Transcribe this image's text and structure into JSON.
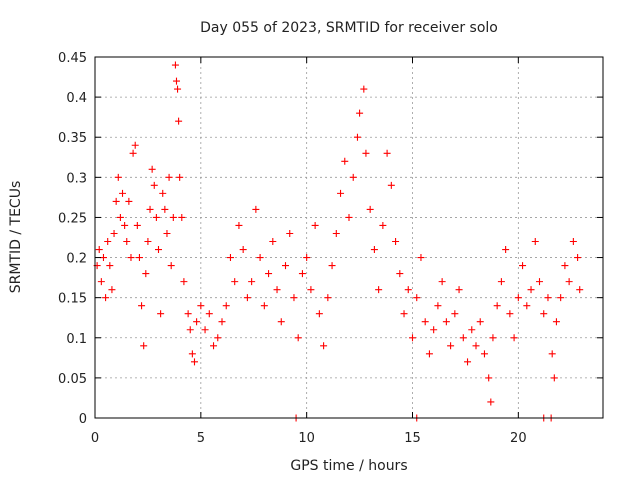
{
  "chart_data": {
    "type": "scatter",
    "title": "Day 055 of 2023, SRMTID for receiver solo",
    "xlabel": "GPS time / hours",
    "ylabel": "SRMTID / TECUs",
    "xlim": [
      0,
      24
    ],
    "ylim": [
      0,
      0.45
    ],
    "xticks": [
      0,
      5,
      10,
      15,
      20
    ],
    "xtick_labels": [
      "0",
      "5",
      "10",
      "15",
      "20"
    ],
    "yticks": [
      0,
      0.05,
      0.1,
      0.15,
      0.2,
      0.25,
      0.3,
      0.35,
      0.4,
      0.45
    ],
    "ytick_labels": [
      "0",
      "0.05",
      "0.1",
      "0.15",
      "0.2",
      "0.25",
      "0.3",
      "0.35",
      "0.4",
      "0.45"
    ],
    "grid": true,
    "marker": "+",
    "color": "#ff0000",
    "series": [
      {
        "name": "SRMTID",
        "points": [
          [
            0.1,
            0.19
          ],
          [
            0.2,
            0.21
          ],
          [
            0.3,
            0.17
          ],
          [
            0.4,
            0.2
          ],
          [
            0.5,
            0.15
          ],
          [
            0.6,
            0.22
          ],
          [
            0.7,
            0.19
          ],
          [
            0.8,
            0.16
          ],
          [
            0.9,
            0.23
          ],
          [
            1.0,
            0.27
          ],
          [
            1.1,
            0.3
          ],
          [
            1.2,
            0.25
          ],
          [
            1.3,
            0.28
          ],
          [
            1.4,
            0.24
          ],
          [
            1.5,
            0.22
          ],
          [
            1.6,
            0.27
          ],
          [
            1.7,
            0.2
          ],
          [
            1.8,
            0.33
          ],
          [
            1.9,
            0.34
          ],
          [
            2.0,
            0.24
          ],
          [
            2.1,
            0.2
          ],
          [
            2.2,
            0.14
          ],
          [
            2.3,
            0.09
          ],
          [
            2.4,
            0.18
          ],
          [
            2.5,
            0.22
          ],
          [
            2.6,
            0.26
          ],
          [
            2.7,
            0.31
          ],
          [
            2.8,
            0.29
          ],
          [
            2.9,
            0.25
          ],
          [
            3.0,
            0.21
          ],
          [
            3.1,
            0.13
          ],
          [
            3.2,
            0.28
          ],
          [
            3.3,
            0.26
          ],
          [
            3.4,
            0.23
          ],
          [
            3.5,
            0.3
          ],
          [
            3.6,
            0.19
          ],
          [
            3.7,
            0.25
          ],
          [
            3.8,
            0.44
          ],
          [
            3.85,
            0.42
          ],
          [
            3.9,
            0.41
          ],
          [
            3.95,
            0.37
          ],
          [
            4.0,
            0.3
          ],
          [
            4.1,
            0.25
          ],
          [
            4.2,
            0.17
          ],
          [
            4.4,
            0.13
          ],
          [
            4.5,
            0.11
          ],
          [
            4.6,
            0.08
          ],
          [
            4.7,
            0.07
          ],
          [
            4.8,
            0.12
          ],
          [
            5.0,
            0.14
          ],
          [
            5.2,
            0.11
          ],
          [
            5.4,
            0.13
          ],
          [
            5.6,
            0.09
          ],
          [
            5.8,
            0.1
          ],
          [
            6.0,
            0.12
          ],
          [
            6.2,
            0.14
          ],
          [
            6.4,
            0.2
          ],
          [
            6.6,
            0.17
          ],
          [
            6.8,
            0.24
          ],
          [
            7.0,
            0.21
          ],
          [
            7.2,
            0.15
          ],
          [
            7.4,
            0.17
          ],
          [
            7.6,
            0.26
          ],
          [
            7.8,
            0.2
          ],
          [
            8.0,
            0.14
          ],
          [
            8.2,
            0.18
          ],
          [
            8.4,
            0.22
          ],
          [
            8.6,
            0.16
          ],
          [
            8.8,
            0.12
          ],
          [
            9.0,
            0.19
          ],
          [
            9.2,
            0.23
          ],
          [
            9.4,
            0.15
          ],
          [
            9.6,
            0.1
          ],
          [
            9.8,
            0.18
          ],
          [
            10.0,
            0.2
          ],
          [
            10.2,
            0.16
          ],
          [
            10.4,
            0.24
          ],
          [
            10.6,
            0.13
          ],
          [
            10.8,
            0.09
          ],
          [
            11.0,
            0.15
          ],
          [
            11.2,
            0.19
          ],
          [
            11.4,
            0.23
          ],
          [
            11.6,
            0.28
          ],
          [
            11.8,
            0.32
          ],
          [
            12.0,
            0.25
          ],
          [
            12.2,
            0.3
          ],
          [
            12.4,
            0.35
          ],
          [
            12.5,
            0.38
          ],
          [
            12.7,
            0.41
          ],
          [
            12.8,
            0.33
          ],
          [
            13.0,
            0.26
          ],
          [
            13.2,
            0.21
          ],
          [
            13.4,
            0.16
          ],
          [
            13.6,
            0.24
          ],
          [
            13.8,
            0.33
          ],
          [
            14.0,
            0.29
          ],
          [
            14.2,
            0.22
          ],
          [
            14.4,
            0.18
          ],
          [
            14.6,
            0.13
          ],
          [
            14.8,
            0.16
          ],
          [
            15.0,
            0.1
          ],
          [
            15.2,
            0.15
          ],
          [
            15.4,
            0.2
          ],
          [
            15.6,
            0.12
          ],
          [
            15.8,
            0.08
          ],
          [
            16.0,
            0.11
          ],
          [
            16.2,
            0.14
          ],
          [
            16.4,
            0.17
          ],
          [
            16.6,
            0.12
          ],
          [
            16.8,
            0.09
          ],
          [
            17.0,
            0.13
          ],
          [
            17.2,
            0.16
          ],
          [
            17.4,
            0.1
          ],
          [
            17.6,
            0.07
          ],
          [
            17.8,
            0.11
          ],
          [
            18.0,
            0.09
          ],
          [
            18.2,
            0.12
          ],
          [
            18.4,
            0.08
          ],
          [
            18.6,
            0.05
          ],
          [
            18.7,
            0.02
          ],
          [
            18.8,
            0.1
          ],
          [
            19.0,
            0.14
          ],
          [
            19.2,
            0.17
          ],
          [
            19.4,
            0.21
          ],
          [
            19.6,
            0.13
          ],
          [
            19.8,
            0.1
          ],
          [
            20.0,
            0.15
          ],
          [
            20.2,
            0.19
          ],
          [
            20.4,
            0.14
          ],
          [
            20.6,
            0.16
          ],
          [
            20.8,
            0.22
          ],
          [
            21.0,
            0.17
          ],
          [
            21.2,
            0.13
          ],
          [
            21.4,
            0.15
          ],
          [
            21.6,
            0.08
          ],
          [
            21.7,
            0.05
          ],
          [
            21.8,
            0.12
          ],
          [
            22.0,
            0.15
          ],
          [
            22.2,
            0.19
          ],
          [
            22.4,
            0.17
          ],
          [
            22.6,
            0.22
          ],
          [
            22.8,
            0.2
          ],
          [
            22.9,
            0.16
          ],
          [
            9.5,
            0.0
          ],
          [
            15.2,
            0.0
          ],
          [
            21.2,
            0.0
          ],
          [
            21.55,
            0.0
          ]
        ]
      }
    ]
  }
}
